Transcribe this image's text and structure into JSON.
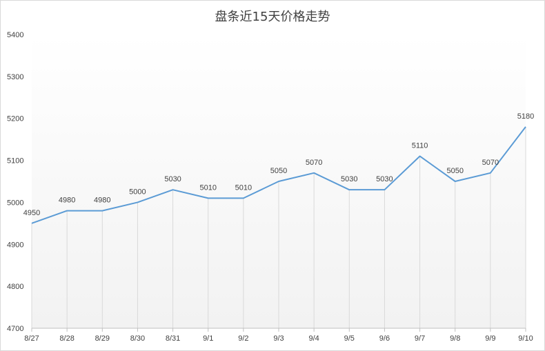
{
  "chart_data": {
    "type": "line",
    "title": "盘条近15天价格走势",
    "categories": [
      "8/27",
      "8/28",
      "8/29",
      "8/30",
      "8/31",
      "9/1",
      "9/2",
      "9/3",
      "9/4",
      "9/5",
      "9/6",
      "9/7",
      "9/8",
      "9/9",
      "9/10"
    ],
    "series": [
      {
        "values": [
          4950,
          4980,
          4980,
          5000,
          5030,
          5010,
          5010,
          5050,
          5070,
          5030,
          5030,
          5110,
          5050,
          5070,
          5180
        ]
      }
    ],
    "ylim": [
      4700,
      5400
    ],
    "yticks": [
      4700,
      4800,
      4900,
      5000,
      5100,
      5200,
      5300,
      5400
    ],
    "data_labels": true,
    "vertical_drop_lines": true,
    "grid": false,
    "legend": "none",
    "colors": {
      "line": "#5b9bd5",
      "drop_lines": "#d9d9d9",
      "axis": "#bfbfbf",
      "text": "#404040",
      "plot_gradient_top": "#ffffff",
      "plot_gradient_bottom": "#f2f2f2"
    }
  }
}
